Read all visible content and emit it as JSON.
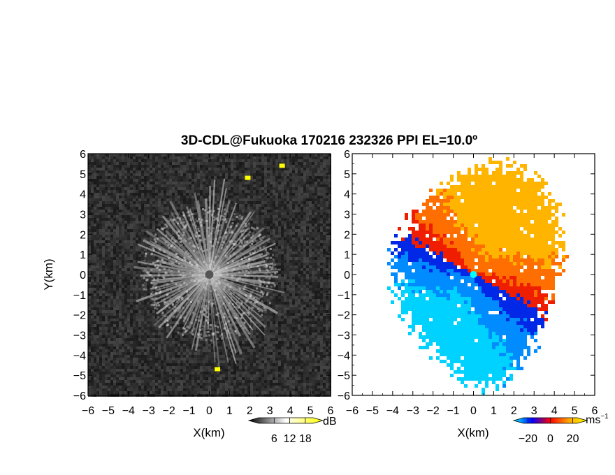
{
  "figure": {
    "title": "3D-CDL@Fukuoka 170216 232326 PPI EL=10.0º"
  },
  "chart_data": [
    {
      "type": "heatmap",
      "name": "snr-panel",
      "xlabel": "X(km)",
      "ylabel": "Y(km)",
      "xlim": [
        -6,
        6
      ],
      "ylim": [
        -6,
        6
      ],
      "xticks": [
        -6,
        -5,
        -4,
        -3,
        -2,
        -1,
        0,
        1,
        2,
        3,
        4,
        5,
        6
      ],
      "yticks": [
        -6,
        -5,
        -4,
        -3,
        -2,
        -1,
        0,
        1,
        2,
        3,
        4,
        5,
        6
      ],
      "xtick_labels": [
        "−6",
        "−5",
        "−4",
        "−3",
        "−2",
        "−1",
        "0",
        "1",
        "2",
        "3",
        "4",
        "5",
        "6"
      ],
      "ytick_labels": [
        "−6",
        "−5",
        "−4",
        "−3",
        "−2",
        "−1",
        "0",
        "1",
        "2",
        "3",
        "4",
        "5",
        "6"
      ],
      "colorbar": {
        "unit": "dB",
        "ticks": [
          6,
          12,
          18
        ],
        "tick_labels": [
          "6",
          "12",
          "18"
        ],
        "range": [
          0,
          21
        ],
        "colors": [
          "#000000",
          "#ffffff",
          "#ffff00"
        ]
      },
      "echo_region": {
        "center": [
          0,
          0
        ],
        "typical_radius_km": 3.5
      },
      "hot_spots": [
        {
          "x": 1.9,
          "y": 4.8
        },
        {
          "x": 3.6,
          "y": 5.4
        },
        {
          "x": 0.4,
          "y": -4.7
        }
      ]
    },
    {
      "type": "heatmap",
      "name": "velocity-panel",
      "xlabel": "X(km)",
      "ylabel": "",
      "xlim": [
        -6,
        6
      ],
      "ylim": [
        -6,
        6
      ],
      "xticks": [
        -6,
        -5,
        -4,
        -3,
        -2,
        -1,
        0,
        1,
        2,
        3,
        4,
        5,
        6
      ],
      "yticks": [
        -6,
        -5,
        -4,
        -3,
        -2,
        -1,
        0,
        1,
        2,
        3,
        4,
        5,
        6
      ],
      "xtick_labels": [
        "−6",
        "−5",
        "−4",
        "−3",
        "−2",
        "−1",
        "0",
        "1",
        "2",
        "3",
        "4",
        "5",
        "6"
      ],
      "ytick_labels": [
        "−6",
        "−5",
        "−4",
        "−3",
        "−2",
        "−1",
        "0",
        "1",
        "2",
        "3",
        "4",
        "5",
        "6"
      ],
      "colorbar": {
        "unit": "ms",
        "unit_exponent": "−1",
        "ticks": [
          -20,
          0,
          20
        ],
        "tick_labels": [
          "−20",
          "0",
          "20"
        ],
        "range": [
          -24,
          24
        ],
        "colors": [
          "#00ffff",
          "#0000ff",
          "#ff0000",
          "#ffa500",
          "#ffff00"
        ]
      },
      "wind_direction_deg": 60,
      "velocity_range": [
        -22,
        22
      ]
    }
  ]
}
